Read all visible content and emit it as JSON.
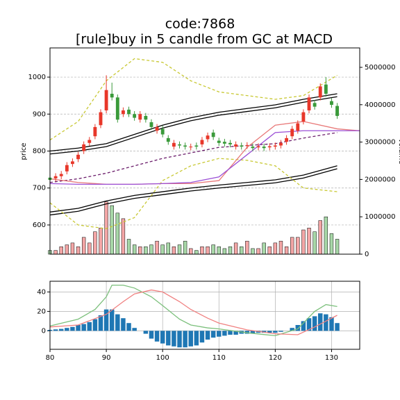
{
  "chart_data": [
    {
      "type": "candlestick",
      "title": "code:7868",
      "subtitle": "[rule]buy in 5 candle from GC at MACD",
      "y_label": "price",
      "y2_label": "volume",
      "xlim": [
        80,
        135
      ],
      "ylim": [
        521,
        1079
      ],
      "yticks": [
        600,
        700,
        800,
        900,
        1000
      ],
      "y2lim": [
        0,
        5520000
      ],
      "y2ticks": [
        0,
        1000000,
        2000000,
        3000000,
        4000000,
        5000000
      ],
      "grid": true,
      "up_color": "#e8372a",
      "down_color": "#3a9a3a",
      "volume_up_color": "#f4a6a6",
      "volume_down_color": "#a8d8a8",
      "x": [
        80,
        81,
        82,
        83,
        84,
        85,
        86,
        87,
        88,
        89,
        90,
        91,
        92,
        93,
        94,
        95,
        96,
        97,
        98,
        99,
        100,
        101,
        102,
        103,
        104,
        105,
        106,
        107,
        108,
        109,
        110,
        111,
        112,
        113,
        114,
        115,
        116,
        117,
        118,
        119,
        120,
        121,
        122,
        123,
        124,
        125,
        126,
        127,
        128,
        129,
        130,
        131
      ],
      "open": [
        728,
        726,
        732,
        745,
        765,
        778,
        800,
        822,
        840,
        870,
        910,
        955,
        945,
        900,
        912,
        900,
        885,
        895,
        878,
        855,
        860,
        835,
        812,
        818,
        815,
        810,
        815,
        818,
        832,
        850,
        828,
        825,
        822,
        812,
        815,
        814,
        812,
        810,
        812,
        810,
        812,
        815,
        825,
        840,
        855,
        880,
        910,
        930,
        945,
        980,
        935,
        922
      ],
      "high": [
        736,
        740,
        746,
        770,
        780,
        798,
        826,
        838,
        873,
        913,
        1005,
        985,
        953,
        918,
        920,
        908,
        908,
        903,
        886,
        873,
        868,
        843,
        830,
        826,
        823,
        820,
        823,
        838,
        850,
        858,
        836,
        833,
        830,
        826,
        823,
        824,
        820,
        821,
        820,
        821,
        823,
        830,
        843,
        868,
        883,
        913,
        953,
        938,
        983,
        1000,
        943,
        930
      ],
      "low": [
        714,
        718,
        724,
        737,
        757,
        770,
        792,
        814,
        832,
        862,
        902,
        937,
        877,
        892,
        892,
        882,
        877,
        877,
        857,
        847,
        837,
        817,
        804,
        807,
        804,
        802,
        804,
        810,
        824,
        830,
        814,
        812,
        810,
        804,
        804,
        806,
        800,
        802,
        800,
        802,
        804,
        807,
        817,
        832,
        847,
        872,
        902,
        912,
        937,
        947,
        917,
        887
      ],
      "close": [
        722,
        732,
        738,
        762,
        772,
        790,
        818,
        830,
        865,
        905,
        965,
        945,
        885,
        910,
        900,
        890,
        900,
        885,
        865,
        865,
        845,
        825,
        822,
        815,
        812,
        812,
        812,
        830,
        842,
        838,
        822,
        820,
        818,
        818,
        812,
        816,
        808,
        813,
        808,
        813,
        815,
        822,
        835,
        860,
        875,
        905,
        945,
        920,
        975,
        955,
        925,
        895
      ],
      "volume": [
        100000,
        100000,
        200000,
        250000,
        300000,
        200000,
        450000,
        300000,
        600000,
        700000,
        1400000,
        1300000,
        1100000,
        950000,
        400000,
        250000,
        200000,
        200000,
        250000,
        350000,
        250000,
        300000,
        200000,
        250000,
        350000,
        150000,
        100000,
        200000,
        200000,
        250000,
        200000,
        150000,
        200000,
        300000,
        200000,
        350000,
        150000,
        150000,
        300000,
        200000,
        300000,
        350000,
        200000,
        450000,
        450000,
        650000,
        700000,
        600000,
        900000,
        1000000,
        550000,
        400000
      ],
      "series": [
        {
          "color": "#000000",
          "dash": false,
          "x": [
            80,
            85,
            90,
            95,
            100,
            105,
            110,
            115,
            120,
            125,
            131
          ],
          "values": [
            800,
            808,
            820,
            845,
            870,
            890,
            905,
            915,
            925,
            940,
            955
          ]
        },
        {
          "color": "#000000",
          "dash": false,
          "x": [
            80,
            85,
            90,
            95,
            100,
            105,
            110,
            115,
            120,
            125,
            131
          ],
          "values": [
            792,
            800,
            812,
            837,
            862,
            882,
            897,
            907,
            917,
            932,
            947
          ]
        },
        {
          "color": "#000000",
          "dash": false,
          "x": [
            80,
            85,
            90,
            95,
            100,
            105,
            110,
            115,
            120,
            125,
            131
          ],
          "values": [
            635,
            645,
            665,
            680,
            690,
            700,
            708,
            715,
            722,
            735,
            760
          ]
        },
        {
          "color": "#000000",
          "dash": false,
          "x": [
            80,
            85,
            90,
            95,
            100,
            105,
            110,
            115,
            120,
            125,
            131
          ],
          "values": [
            627,
            637,
            657,
            672,
            682,
            692,
            700,
            707,
            714,
            727,
            752
          ]
        },
        {
          "color": "#c8c832",
          "dash": true,
          "x": [
            80,
            85,
            90,
            95,
            100,
            105,
            110,
            115,
            120,
            125,
            131
          ],
          "values": [
            830,
            880,
            990,
            1050,
            1040,
            990,
            960,
            950,
            940,
            950,
            1005
          ]
        },
        {
          "color": "#c8c832",
          "dash": true,
          "x": [
            80,
            85,
            90,
            95,
            100,
            105,
            110,
            115,
            120,
            125,
            131
          ],
          "values": [
            660,
            600,
            590,
            620,
            720,
            760,
            780,
            775,
            760,
            700,
            690
          ]
        },
        {
          "color": "#6a1b6a",
          "dash": true,
          "x": [
            80,
            85,
            90,
            95,
            100,
            105,
            110,
            115,
            120,
            125,
            131
          ],
          "values": [
            715,
            725,
            740,
            760,
            780,
            795,
            810,
            815,
            820,
            835,
            850
          ]
        },
        {
          "color": "#e87878",
          "dash": false,
          "x": [
            80,
            85,
            90,
            95,
            100,
            105,
            110,
            115,
            120,
            125,
            131,
            135
          ],
          "values": [
            725,
            715,
            710,
            710,
            712,
            712,
            720,
            810,
            870,
            880,
            860,
            855
          ]
        },
        {
          "color": "#9b4fd6",
          "dash": false,
          "x": [
            80,
            85,
            90,
            95,
            100,
            105,
            110,
            115,
            120,
            125,
            131,
            135
          ],
          "values": [
            712,
            710,
            710,
            710,
            712,
            715,
            730,
            790,
            850,
            855,
            855,
            855
          ]
        }
      ]
    },
    {
      "type": "macd",
      "xlim": [
        80,
        135
      ],
      "ylim": [
        -19,
        51
      ],
      "yticks": [
        0,
        20,
        40
      ],
      "xticks": [
        80,
        90,
        100,
        110,
        120,
        130
      ],
      "grid": true,
      "bar_color": "#1f77b4",
      "x": [
        80,
        81,
        82,
        83,
        84,
        85,
        86,
        87,
        88,
        89,
        90,
        91,
        92,
        93,
        94,
        95,
        96,
        97,
        98,
        99,
        100,
        101,
        102,
        103,
        104,
        105,
        106,
        107,
        108,
        109,
        110,
        111,
        112,
        113,
        114,
        115,
        116,
        117,
        118,
        119,
        120,
        121,
        122,
        123,
        124,
        125,
        126,
        127,
        128,
        129,
        130,
        131
      ],
      "values": [
        1,
        1.5,
        2,
        3,
        4,
        6,
        7,
        9,
        12,
        16,
        22,
        22,
        17,
        13,
        8,
        3,
        0,
        -3,
        -8,
        -11,
        -13,
        -15,
        -16,
        -17,
        -17,
        -16,
        -15,
        -12,
        -9,
        -7,
        -6,
        -5,
        -4,
        -4,
        -3,
        -3,
        -3,
        -2,
        -2,
        -2,
        -2,
        -1,
        0,
        3,
        6,
        10,
        13,
        15,
        18,
        17,
        14,
        8
      ],
      "series": [
        {
          "color": "#7cc07c",
          "x": [
            80,
            85,
            88,
            90,
            91,
            93,
            95,
            98,
            100,
            103,
            105,
            108,
            110,
            115,
            120,
            124,
            127,
            129,
            131
          ],
          "values": [
            5,
            12,
            22,
            35,
            47,
            47,
            44,
            35,
            26,
            12,
            6,
            3,
            2,
            -2,
            -5,
            2,
            20,
            27,
            25
          ]
        },
        {
          "color": "#f08080",
          "x": [
            80,
            85,
            90,
            93,
            95,
            98,
            100,
            103,
            105,
            108,
            110,
            115,
            120,
            124,
            127,
            129,
            131
          ],
          "values": [
            4,
            6,
            17,
            30,
            38,
            42,
            40,
            30,
            22,
            13,
            8,
            1,
            -3,
            -4,
            4,
            10,
            16
          ]
        }
      ]
    }
  ]
}
